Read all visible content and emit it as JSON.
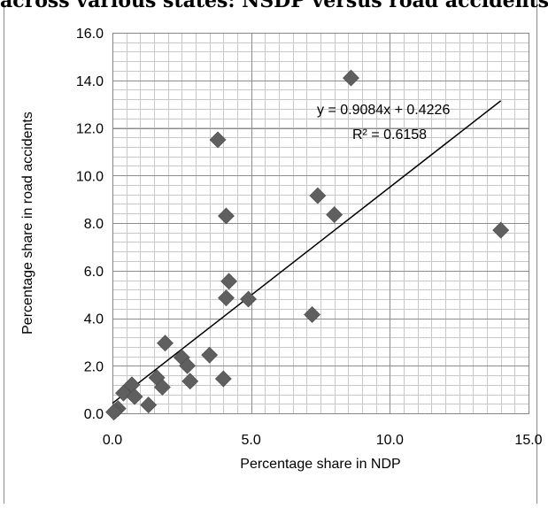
{
  "page": {
    "cut_title": "across various states: NSDP versus road accidents"
  },
  "chart_data": {
    "type": "scatter",
    "xlabel": "Percentage share in NDP",
    "ylabel": "Percentage share in road accidents",
    "xlim": [
      0,
      15
    ],
    "ylim": [
      0,
      16
    ],
    "x_ticks": [
      "0.0",
      "5.0",
      "10.0",
      "15.0"
    ],
    "y_ticks": [
      "0.0",
      "2.0",
      "4.0",
      "6.0",
      "8.0",
      "10.0",
      "12.0",
      "14.0",
      "16.0"
    ],
    "minor_grid_x_step": 0.5,
    "minor_grid_y_step": 0.4,
    "grid": true,
    "marker": "diamond",
    "marker_color": "#5f5f5f",
    "points": [
      {
        "x": 8.6,
        "y": 14.1
      },
      {
        "x": 3.8,
        "y": 11.5
      },
      {
        "x": 7.4,
        "y": 9.15
      },
      {
        "x": 4.1,
        "y": 8.3
      },
      {
        "x": 8.0,
        "y": 8.35
      },
      {
        "x": 14.0,
        "y": 7.7
      },
      {
        "x": 4.2,
        "y": 5.55
      },
      {
        "x": 4.1,
        "y": 4.85
      },
      {
        "x": 4.9,
        "y": 4.8
      },
      {
        "x": 7.2,
        "y": 4.15
      },
      {
        "x": 1.9,
        "y": 2.95
      },
      {
        "x": 2.5,
        "y": 2.35
      },
      {
        "x": 3.5,
        "y": 2.45
      },
      {
        "x": 2.7,
        "y": 2.0
      },
      {
        "x": 1.6,
        "y": 1.5
      },
      {
        "x": 4.0,
        "y": 1.45
      },
      {
        "x": 2.8,
        "y": 1.35
      },
      {
        "x": 0.7,
        "y": 1.2
      },
      {
        "x": 1.8,
        "y": 1.1
      },
      {
        "x": 0.4,
        "y": 0.85
      },
      {
        "x": 0.8,
        "y": 0.7
      },
      {
        "x": 1.3,
        "y": 0.35
      },
      {
        "x": 0.2,
        "y": 0.2
      },
      {
        "x": 0.1,
        "y": 0.1
      },
      {
        "x": 0.05,
        "y": 0.05
      }
    ],
    "trendline": {
      "slope": 0.9084,
      "intercept": 0.4226,
      "x_start": 0.0,
      "x_end": 14.0,
      "equation": "y = 0.9084x + 0.4226",
      "r_squared": "R² = 0.6158"
    }
  }
}
